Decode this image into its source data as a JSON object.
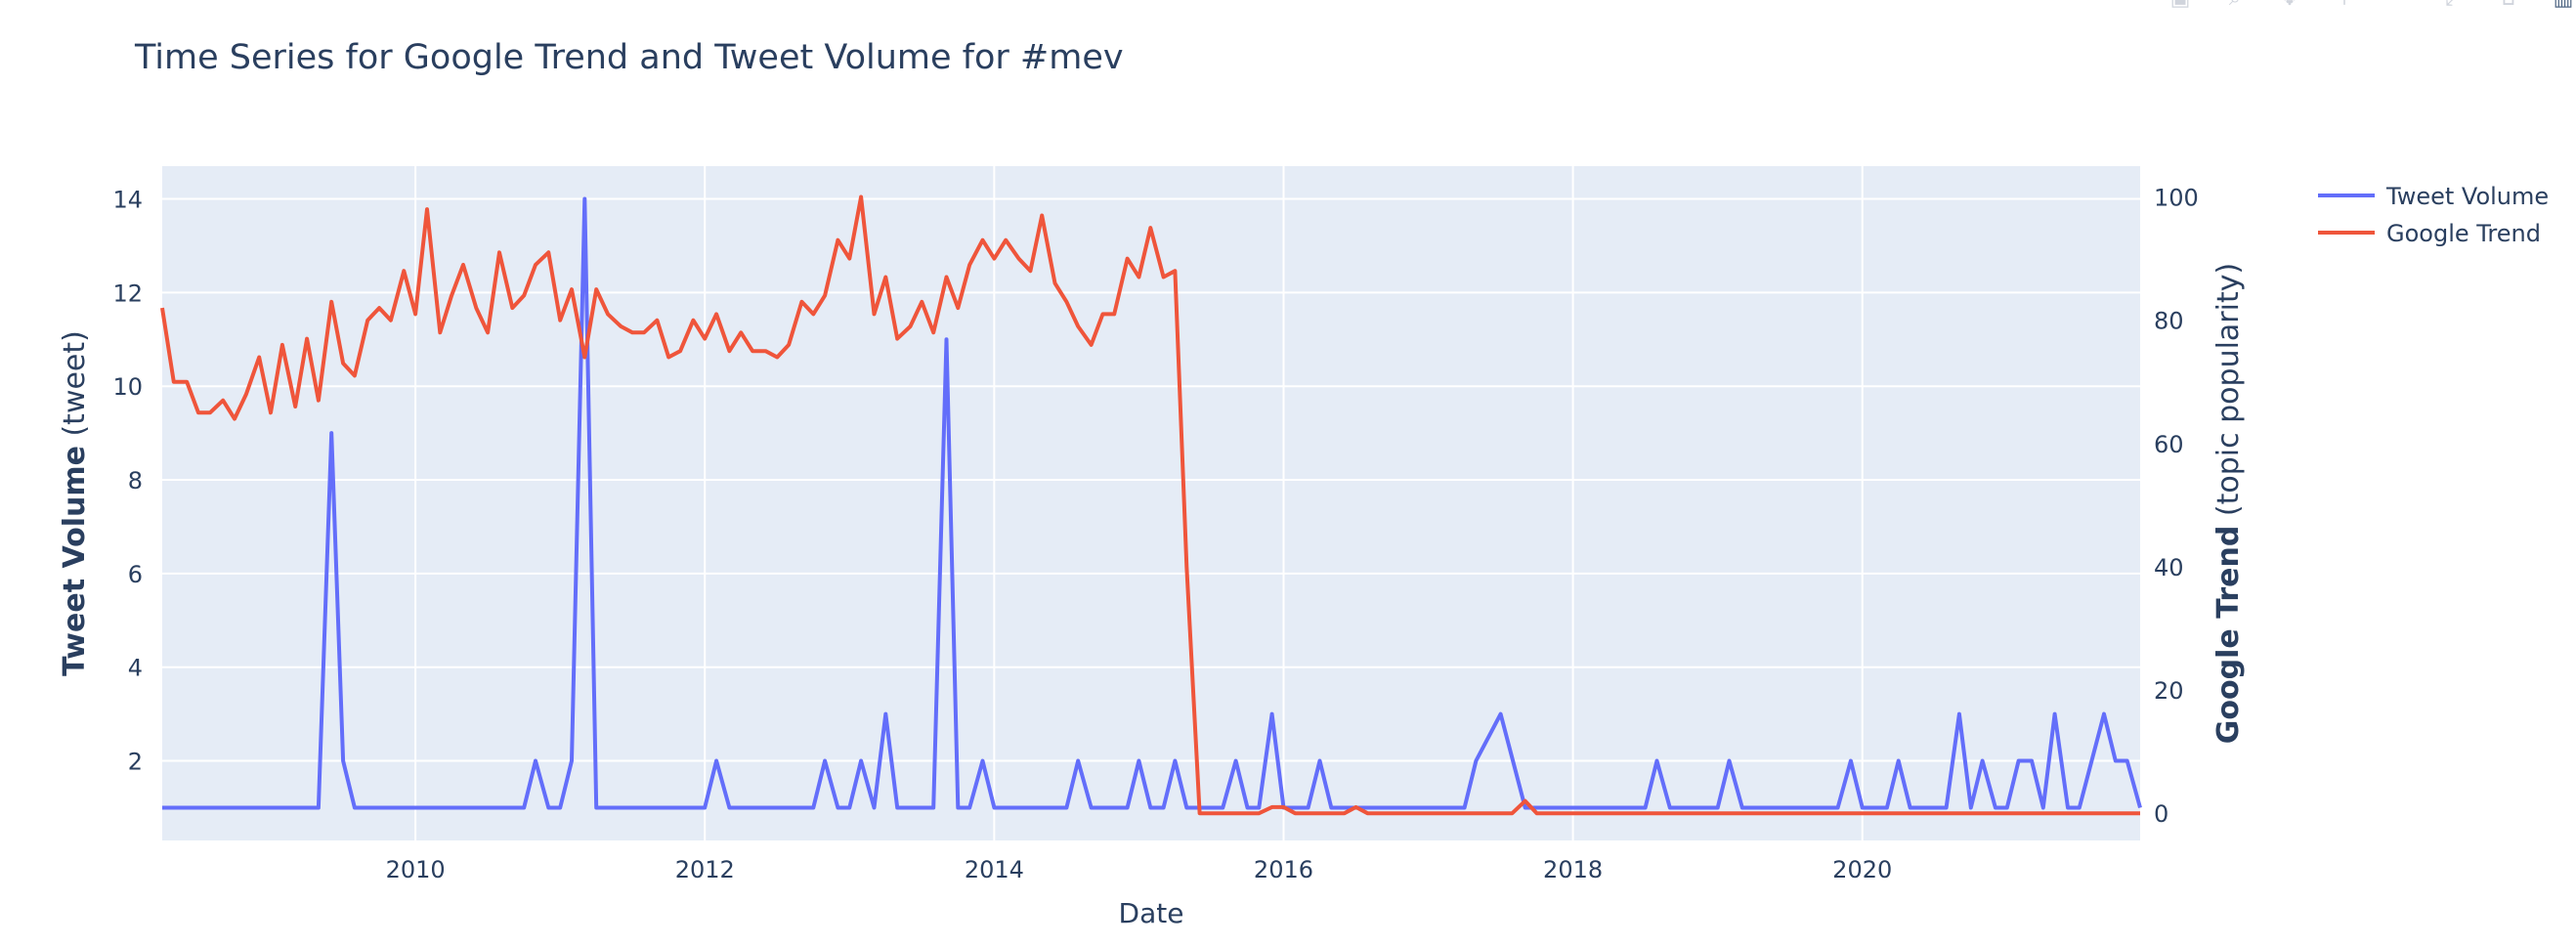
{
  "toolbar": [
    {
      "name": "camera-icon",
      "glyph": "▣"
    },
    {
      "name": "zoom-icon",
      "glyph": "⌕"
    },
    {
      "name": "pan-icon",
      "glyph": "✥"
    },
    {
      "name": "zoom-in-icon",
      "glyph": "＋"
    },
    {
      "name": "zoom-out-icon",
      "glyph": "－"
    },
    {
      "name": "autoscale-icon",
      "glyph": "⤢"
    },
    {
      "name": "reset-axes-icon",
      "glyph": "⌂"
    },
    {
      "name": "plotly-logo-icon",
      "glyph": "▥"
    }
  ],
  "chart_data": {
    "type": "line",
    "title": "Time Series for Google Trend and Tweet Volume for #mev",
    "xlabel": "Date",
    "ylabel_left": {
      "bold": "Tweet Volume",
      "normal": " (tweet)"
    },
    "ylabel_right": {
      "bold": "Google Trend",
      "normal": " (topic popularity)"
    },
    "xlim": [
      2008.25,
      2021.92
    ],
    "ylim_left": [
      0.3,
      14.7
    ],
    "ylim_right": [
      -4.4,
      105
    ],
    "x_ticks": [
      2010,
      2012,
      2014,
      2016,
      2018,
      2020
    ],
    "y_ticks_left": [
      2,
      4,
      6,
      8,
      10,
      12,
      14
    ],
    "y_ticks_right": [
      0,
      20,
      40,
      60,
      80,
      100
    ],
    "grid": true,
    "legend_position": "top-right",
    "colors": {
      "tweet": "#636efa",
      "google": "#ef553b",
      "plot_bg": "#e5ecf6",
      "grid": "#ffffff",
      "text": "#2a3f5f"
    },
    "series": [
      {
        "name": "Tweet Volume",
        "axis": "left",
        "points": [
          [
            2008.25,
            1
          ],
          [
            2009.33,
            1
          ],
          [
            2009.42,
            9
          ],
          [
            2009.5,
            2
          ],
          [
            2009.58,
            1
          ],
          [
            2010.75,
            1
          ],
          [
            2010.83,
            2
          ],
          [
            2010.92,
            1
          ],
          [
            2011.0,
            1
          ],
          [
            2011.08,
            2
          ],
          [
            2011.17,
            14
          ],
          [
            2011.25,
            1
          ],
          [
            2012.0,
            1
          ],
          [
            2012.08,
            2
          ],
          [
            2012.17,
            1
          ],
          [
            2012.75,
            1
          ],
          [
            2012.83,
            2
          ],
          [
            2012.92,
            1
          ],
          [
            2013.0,
            1
          ],
          [
            2013.08,
            2
          ],
          [
            2013.17,
            1
          ],
          [
            2013.25,
            3
          ],
          [
            2013.33,
            1
          ],
          [
            2013.58,
            1
          ],
          [
            2013.67,
            11
          ],
          [
            2013.75,
            1
          ],
          [
            2013.83,
            1
          ],
          [
            2013.92,
            2
          ],
          [
            2014.0,
            1
          ],
          [
            2014.5,
            1
          ],
          [
            2014.58,
            2
          ],
          [
            2014.67,
            1
          ],
          [
            2014.92,
            1
          ],
          [
            2015.0,
            2
          ],
          [
            2015.08,
            1
          ],
          [
            2015.17,
            1
          ],
          [
            2015.25,
            2
          ],
          [
            2015.33,
            1
          ],
          [
            2015.58,
            1
          ],
          [
            2015.67,
            2
          ],
          [
            2015.75,
            1
          ],
          [
            2015.83,
            1
          ],
          [
            2015.92,
            3
          ],
          [
            2016.0,
            1
          ],
          [
            2016.17,
            1
          ],
          [
            2016.25,
            2
          ],
          [
            2016.33,
            1
          ],
          [
            2017.25,
            1
          ],
          [
            2017.33,
            2
          ],
          [
            2017.5,
            3
          ],
          [
            2017.67,
            1
          ],
          [
            2018.33,
            1
          ],
          [
            2018.5,
            1
          ],
          [
            2018.58,
            2
          ],
          [
            2018.67,
            1
          ],
          [
            2019.0,
            1
          ],
          [
            2019.08,
            2
          ],
          [
            2019.17,
            1
          ],
          [
            2019.83,
            1
          ],
          [
            2019.92,
            2
          ],
          [
            2020.0,
            1
          ],
          [
            2020.17,
            1
          ],
          [
            2020.25,
            2
          ],
          [
            2020.33,
            1
          ],
          [
            2020.58,
            1
          ],
          [
            2020.67,
            3
          ],
          [
            2020.75,
            1
          ],
          [
            2020.83,
            2
          ],
          [
            2020.92,
            1
          ],
          [
            2021.0,
            1
          ],
          [
            2021.08,
            2
          ],
          [
            2021.17,
            2
          ],
          [
            2021.25,
            1
          ],
          [
            2021.33,
            3
          ],
          [
            2021.42,
            1
          ],
          [
            2021.5,
            1
          ],
          [
            2021.67,
            3
          ],
          [
            2021.75,
            2
          ],
          [
            2021.83,
            2
          ],
          [
            2021.92,
            1
          ]
        ]
      },
      {
        "name": "Google Trend",
        "axis": "right",
        "points": [
          [
            2008.25,
            82
          ],
          [
            2008.33,
            70
          ],
          [
            2008.42,
            70
          ],
          [
            2008.5,
            65
          ],
          [
            2008.58,
            65
          ],
          [
            2008.67,
            67
          ],
          [
            2008.75,
            64
          ],
          [
            2008.83,
            68
          ],
          [
            2008.92,
            74
          ],
          [
            2009.0,
            65
          ],
          [
            2009.08,
            76
          ],
          [
            2009.17,
            66
          ],
          [
            2009.25,
            77
          ],
          [
            2009.33,
            67
          ],
          [
            2009.42,
            83
          ],
          [
            2009.5,
            73
          ],
          [
            2009.58,
            71
          ],
          [
            2009.67,
            80
          ],
          [
            2009.75,
            82
          ],
          [
            2009.83,
            80
          ],
          [
            2009.92,
            88
          ],
          [
            2010.0,
            81
          ],
          [
            2010.08,
            98
          ],
          [
            2010.17,
            78
          ],
          [
            2010.25,
            84
          ],
          [
            2010.33,
            89
          ],
          [
            2010.42,
            82
          ],
          [
            2010.5,
            78
          ],
          [
            2010.58,
            91
          ],
          [
            2010.67,
            82
          ],
          [
            2010.75,
            84
          ],
          [
            2010.83,
            89
          ],
          [
            2010.92,
            91
          ],
          [
            2011.0,
            80
          ],
          [
            2011.08,
            85
          ],
          [
            2011.17,
            74
          ],
          [
            2011.25,
            85
          ],
          [
            2011.33,
            81
          ],
          [
            2011.42,
            79
          ],
          [
            2011.5,
            78
          ],
          [
            2011.58,
            78
          ],
          [
            2011.67,
            80
          ],
          [
            2011.75,
            74
          ],
          [
            2011.83,
            75
          ],
          [
            2011.92,
            80
          ],
          [
            2012.0,
            77
          ],
          [
            2012.08,
            81
          ],
          [
            2012.17,
            75
          ],
          [
            2012.25,
            78
          ],
          [
            2012.33,
            75
          ],
          [
            2012.42,
            75
          ],
          [
            2012.5,
            74
          ],
          [
            2012.58,
            76
          ],
          [
            2012.67,
            83
          ],
          [
            2012.75,
            81
          ],
          [
            2012.83,
            84
          ],
          [
            2012.92,
            93
          ],
          [
            2013.0,
            90
          ],
          [
            2013.08,
            100
          ],
          [
            2013.17,
            81
          ],
          [
            2013.25,
            87
          ],
          [
            2013.33,
            77
          ],
          [
            2013.42,
            79
          ],
          [
            2013.5,
            83
          ],
          [
            2013.58,
            78
          ],
          [
            2013.67,
            87
          ],
          [
            2013.75,
            82
          ],
          [
            2013.83,
            89
          ],
          [
            2013.92,
            93
          ],
          [
            2014.0,
            90
          ],
          [
            2014.08,
            93
          ],
          [
            2014.17,
            90
          ],
          [
            2014.25,
            88
          ],
          [
            2014.33,
            97
          ],
          [
            2014.42,
            86
          ],
          [
            2014.5,
            83
          ],
          [
            2014.58,
            79
          ],
          [
            2014.67,
            76
          ],
          [
            2014.75,
            81
          ],
          [
            2014.83,
            81
          ],
          [
            2014.92,
            90
          ],
          [
            2015.0,
            87
          ],
          [
            2015.08,
            95
          ],
          [
            2015.17,
            87
          ],
          [
            2015.25,
            88
          ],
          [
            2015.33,
            40
          ],
          [
            2015.42,
            0
          ],
          [
            2015.5,
            0
          ],
          [
            2015.58,
            0
          ],
          [
            2015.67,
            0
          ],
          [
            2015.75,
            0
          ],
          [
            2015.83,
            0
          ],
          [
            2015.92,
            1
          ],
          [
            2016.0,
            1
          ],
          [
            2016.08,
            0
          ],
          [
            2016.17,
            0
          ],
          [
            2016.25,
            0
          ],
          [
            2016.33,
            0
          ],
          [
            2016.42,
            0
          ],
          [
            2016.5,
            1
          ],
          [
            2016.58,
            0
          ],
          [
            2016.67,
            0
          ],
          [
            2016.75,
            0
          ],
          [
            2017.33,
            0
          ],
          [
            2017.5,
            0
          ],
          [
            2017.58,
            0
          ],
          [
            2017.67,
            2
          ],
          [
            2017.75,
            0
          ],
          [
            2017.83,
            0
          ],
          [
            2021.92,
            0
          ]
        ]
      }
    ]
  }
}
